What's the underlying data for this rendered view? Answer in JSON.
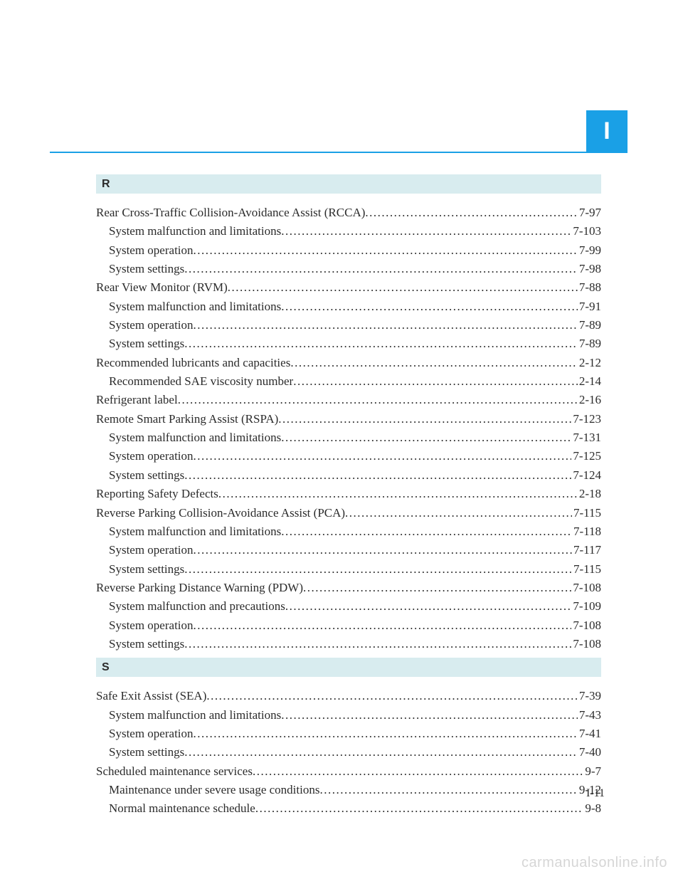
{
  "tab_letter": "I",
  "page_number": "I-11",
  "watermark": "carmanualsonline.info",
  "colors": {
    "tab_bg": "#1aa0e6",
    "tab_text": "#ffffff",
    "rule": "#1aa0e6",
    "letter_header_bg": "#d8ecef",
    "body_text": "#2b2b2b",
    "watermark_text": "#d6d6d6",
    "page_bg": "#ffffff"
  },
  "typography": {
    "body_font": "Georgia, Times New Roman, serif",
    "body_size_pt": 13,
    "header_font": "Arial, Helvetica, sans-serif",
    "tab_font_size_pt": 26,
    "line_height": 1.55
  },
  "sections": [
    {
      "letter": "R",
      "entries": [
        {
          "label": "Rear Cross-Traffic Collision-Avoidance Assist (RCCA)",
          "page": "7-97",
          "indent": 0
        },
        {
          "label": "System malfunction and limitations",
          "page": "7-103",
          "indent": 1
        },
        {
          "label": "System operation",
          "page": "7-99",
          "indent": 1
        },
        {
          "label": "System settings",
          "page": "7-98",
          "indent": 1
        },
        {
          "label": "Rear View Monitor (RVM)",
          "page": "7-88",
          "indent": 0
        },
        {
          "label": "System malfunction and limitations",
          "page": "7-91",
          "indent": 1
        },
        {
          "label": "System operation",
          "page": "7-89",
          "indent": 1
        },
        {
          "label": "System settings",
          "page": "7-89",
          "indent": 1
        },
        {
          "label": "Recommended lubricants and capacities",
          "page": "2-12",
          "indent": 0
        },
        {
          "label": "Recommended SAE viscosity number",
          "page": "2-14",
          "indent": 1
        },
        {
          "label": "Refrigerant label",
          "page": "2-16",
          "indent": 0
        },
        {
          "label": "Remote Smart Parking Assist (RSPA)",
          "page": "7-123",
          "indent": 0
        },
        {
          "label": "System malfunction and limitations",
          "page": "7-131",
          "indent": 1
        },
        {
          "label": "System operation",
          "page": "7-125",
          "indent": 1
        },
        {
          "label": "System settings",
          "page": "7-124",
          "indent": 1
        },
        {
          "label": "Reporting Safety Defects",
          "page": "2-18",
          "indent": 0
        },
        {
          "label": "Reverse Parking Collision-Avoidance Assist (PCA) ",
          "page": "7-115",
          "indent": 0
        },
        {
          "label": "System malfunction and limitations",
          "page": "7-118",
          "indent": 1
        },
        {
          "label": "System operation",
          "page": "7-117",
          "indent": 1
        },
        {
          "label": "System settings",
          "page": "7-115",
          "indent": 1
        },
        {
          "label": "Reverse Parking Distance Warning (PDW) ",
          "page": "7-108",
          "indent": 0
        },
        {
          "label": "System malfunction and precautions",
          "page": "7-109",
          "indent": 1
        },
        {
          "label": "System operation",
          "page": "7-108",
          "indent": 1
        },
        {
          "label": "System settings ",
          "page": "7-108",
          "indent": 1
        }
      ]
    },
    {
      "letter": "S",
      "entries": [
        {
          "label": "Safe Exit Assist (SEA) ",
          "page": "7-39",
          "indent": 0
        },
        {
          "label": "System malfunction and limitations",
          "page": "7-43",
          "indent": 1
        },
        {
          "label": "System operation",
          "page": "7-41",
          "indent": 1
        },
        {
          "label": "System settings",
          "page": "7-40",
          "indent": 1
        },
        {
          "label": "Scheduled maintenance services",
          "page": "9-7",
          "indent": 0
        },
        {
          "label": "Maintenance under severe usage conditions",
          "page": "9-12",
          "indent": 1
        },
        {
          "label": "Normal maintenance schedule",
          "page": "9-8",
          "indent": 1
        }
      ]
    }
  ]
}
